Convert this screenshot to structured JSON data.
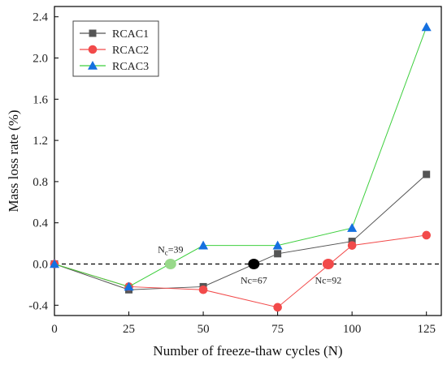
{
  "chart_data": {
    "type": "line",
    "title": "",
    "xlabel": "Number of freeze-thaw cycles (N)",
    "ylabel": "Mass loss rate (%)",
    "xlim": [
      0,
      130
    ],
    "ylim": [
      -0.5,
      2.5
    ],
    "xticks": [
      0,
      25,
      50,
      75,
      100,
      125
    ],
    "xtick_labels": [
      "0",
      "25",
      "50",
      "75",
      "100",
      "125"
    ],
    "yticks": [
      -0.4,
      0.0,
      0.4,
      0.8,
      1.2,
      1.6,
      2.0,
      2.4
    ],
    "ytick_labels": [
      "-0.4",
      "0.0",
      "0.4",
      "0.8",
      "1.2",
      "1.6",
      "2.0",
      "2.4"
    ],
    "grid": false,
    "legend_position": "top-left",
    "reference_line": {
      "y": 0.0,
      "style": "dashed",
      "color": "#000000"
    },
    "x": [
      0,
      25,
      50,
      75,
      100,
      125
    ],
    "series": [
      {
        "name": "RCAC1",
        "color": "#555555",
        "marker": "square",
        "values": [
          0.0,
          -0.25,
          -0.22,
          0.1,
          0.22,
          0.87
        ]
      },
      {
        "name": "RCAC2",
        "color": "#f24a4a",
        "marker": "circle",
        "values": [
          0.0,
          -0.22,
          -0.25,
          -0.42,
          0.18,
          0.28
        ]
      },
      {
        "name": "RCAC3",
        "color": "#1570e0",
        "marker": "triangle",
        "line_color": "#3ecf3e",
        "values": [
          0.0,
          -0.22,
          0.18,
          0.18,
          0.35,
          2.3
        ]
      }
    ],
    "annotations": [
      {
        "label": "N",
        "sub": "c",
        "suffix": "=39",
        "x": 39,
        "y": 0.0,
        "color": "#98d98a",
        "label_side": "above"
      },
      {
        "label": "Nc=67",
        "x": 67,
        "y": 0.0,
        "color": "#000000",
        "label_side": "below"
      },
      {
        "label": "Nc=92",
        "x": 92,
        "y": 0.0,
        "color": "#f24a4a",
        "label_side": "below"
      }
    ]
  }
}
